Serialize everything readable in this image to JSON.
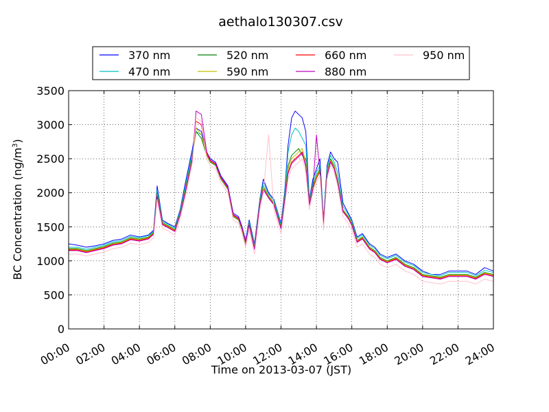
{
  "chart_data": {
    "type": "line",
    "title": "aethalo130307.csv",
    "xlabel": "Time on 2013-03-07 (JST)",
    "ylabel_main": "BC Concentration (ng/m",
    "ylabel_sup": "3",
    "ylabel_close": ")",
    "xlim": [
      0,
      24
    ],
    "ylim": [
      0,
      3500
    ],
    "grid": true,
    "legend_position": "top",
    "x_ticks": [
      0,
      2,
      4,
      6,
      8,
      10,
      12,
      14,
      16,
      18,
      20,
      22,
      24
    ],
    "x_tick_labels": [
      "00:00",
      "02:00",
      "04:00",
      "06:00",
      "08:00",
      "10:00",
      "12:00",
      "14:00",
      "16:00",
      "18:00",
      "20:00",
      "22:00",
      "24:00"
    ],
    "y_ticks": [
      0,
      500,
      1000,
      1500,
      2000,
      2500,
      3000,
      3500
    ],
    "y_tick_labels": [
      "0",
      "500",
      "1000",
      "1500",
      "2000",
      "2500",
      "3000",
      "3500"
    ],
    "x": [
      0,
      0.5,
      1,
      1.5,
      2,
      2.5,
      3,
      3.5,
      4,
      4.5,
      4.8,
      5,
      5.3,
      5.6,
      6,
      6.3,
      6.6,
      7,
      7.2,
      7.5,
      7.8,
      8,
      8.3,
      8.6,
      9,
      9.3,
      9.6,
      9.8,
      10,
      10.2,
      10.5,
      10.8,
      11,
      11.3,
      11.6,
      12,
      12.2,
      12.4,
      12.6,
      12.8,
      13,
      13.2,
      13.4,
      13.6,
      13.8,
      14,
      14.2,
      14.4,
      14.6,
      14.8,
      15,
      15.2,
      15.5,
      15.8,
      16,
      16.3,
      16.6,
      17,
      17.3,
      17.6,
      18,
      18.5,
      19,
      19.5,
      20,
      20.5,
      21,
      21.5,
      22,
      22.5,
      23,
      23.5,
      24
    ],
    "series": [
      {
        "name": "370 nm",
        "color": "#0000ff",
        "values": [
          1250,
          1230,
          1200,
          1220,
          1250,
          1300,
          1320,
          1380,
          1350,
          1380,
          1450,
          2100,
          1600,
          1550,
          1500,
          1750,
          2150,
          2650,
          2950,
          2900,
          2600,
          2500,
          2450,
          2250,
          2100,
          1700,
          1650,
          1500,
          1300,
          1600,
          1250,
          1900,
          2200,
          2000,
          1900,
          1550,
          2000,
          2700,
          3100,
          3200,
          3150,
          3100,
          2900,
          1900,
          2200,
          2350,
          2500,
          1600,
          2400,
          2600,
          2500,
          2450,
          1850,
          1700,
          1600,
          1350,
          1400,
          1250,
          1200,
          1100,
          1050,
          1100,
          1000,
          950,
          850,
          800,
          800,
          850,
          850,
          850,
          800,
          900,
          850
        ]
      },
      {
        "name": "470 nm",
        "color": "#00bfbf",
        "values": [
          1200,
          1200,
          1170,
          1200,
          1230,
          1280,
          1300,
          1360,
          1340,
          1370,
          1430,
          2050,
          1580,
          1540,
          1480,
          1730,
          2100,
          2600,
          2900,
          2850,
          2580,
          2480,
          2420,
          2230,
          2080,
          1680,
          1620,
          1480,
          1280,
          1570,
          1230,
          1880,
          2150,
          1980,
          1880,
          1530,
          1950,
          2600,
          2850,
          2950,
          2900,
          2800,
          2700,
          1880,
          2150,
          2300,
          2400,
          1580,
          2350,
          2550,
          2450,
          2300,
          1800,
          1680,
          1580,
          1330,
          1380,
          1230,
          1180,
          1080,
          1030,
          1080,
          980,
          930,
          830,
          800,
          780,
          830,
          830,
          830,
          780,
          860,
          830
        ]
      },
      {
        "name": "520 nm",
        "color": "#008000",
        "values": [
          1180,
          1180,
          1150,
          1180,
          1210,
          1260,
          1280,
          1340,
          1320,
          1350,
          1420,
          2000,
          1560,
          1520,
          1460,
          1700,
          2050,
          2550,
          2900,
          2800,
          2550,
          2450,
          2400,
          2200,
          2050,
          1650,
          1600,
          1450,
          1250,
          1550,
          1200,
          1850,
          2100,
          1950,
          1850,
          1500,
          1900,
          2400,
          2550,
          2600,
          2650,
          2550,
          2500,
          1850,
          2100,
          2250,
          2350,
          1550,
          2300,
          2500,
          2400,
          2200,
          1750,
          1650,
          1550,
          1300,
          1350,
          1200,
          1150,
          1050,
          1000,
          1050,
          950,
          900,
          800,
          780,
          760,
          800,
          800,
          800,
          760,
          830,
          800
        ]
      },
      {
        "name": "590 nm",
        "color": "#bfbf00",
        "values": [
          1170,
          1170,
          1140,
          1170,
          1200,
          1250,
          1270,
          1330,
          1310,
          1340,
          1410,
          1980,
          1550,
          1510,
          1450,
          1690,
          2030,
          2530,
          2950,
          2850,
          2560,
          2460,
          2410,
          2210,
          2060,
          1660,
          1610,
          1460,
          1260,
          1540,
          1190,
          1840,
          2080,
          1940,
          1840,
          1490,
          1880,
          2350,
          2500,
          2550,
          2600,
          2650,
          2450,
          1840,
          2080,
          2230,
          2330,
          1540,
          2280,
          2480,
          2380,
          2180,
          1740,
          1640,
          1540,
          1290,
          1340,
          1190,
          1140,
          1040,
          990,
          1040,
          940,
          890,
          790,
          770,
          750,
          790,
          790,
          790,
          750,
          820,
          790
        ]
      },
      {
        "name": "660 nm",
        "color": "#ff0000",
        "values": [
          1160,
          1160,
          1130,
          1160,
          1190,
          1240,
          1260,
          1320,
          1300,
          1330,
          1400,
          1960,
          1540,
          1500,
          1440,
          1680,
          2010,
          2510,
          3050,
          3000,
          2580,
          2470,
          2420,
          2220,
          2070,
          1670,
          1620,
          1470,
          1270,
          1530,
          1180,
          1830,
          2060,
          1930,
          1830,
          1480,
          1870,
          2300,
          2450,
          2500,
          2550,
          2600,
          2400,
          1830,
          2060,
          2210,
          2310,
          1530,
          2260,
          2460,
          2360,
          2160,
          1730,
          1630,
          1530,
          1280,
          1330,
          1180,
          1130,
          1030,
          980,
          1030,
          930,
          880,
          780,
          760,
          740,
          780,
          780,
          780,
          740,
          810,
          780
        ]
      },
      {
        "name": "880 nm",
        "color": "#bf00bf",
        "values": [
          1150,
          1150,
          1120,
          1150,
          1180,
          1230,
          1250,
          1310,
          1290,
          1320,
          1390,
          1940,
          1530,
          1490,
          1430,
          1670,
          2000,
          2500,
          3200,
          3150,
          2600,
          2480,
          2430,
          2230,
          2080,
          1680,
          1630,
          1480,
          1280,
          1520,
          1170,
          1820,
          2050,
          1920,
          1820,
          1470,
          1860,
          2280,
          2430,
          2480,
          2530,
          2580,
          2380,
          1820,
          2050,
          2850,
          2300,
          1520,
          2250,
          2450,
          2350,
          2150,
          1720,
          1620,
          1520,
          1270,
          1320,
          1170,
          1120,
          1020,
          970,
          1020,
          920,
          870,
          770,
          750,
          730,
          770,
          770,
          770,
          730,
          800,
          770
        ]
      },
      {
        "name": "950 nm",
        "color": "#ffc0cb",
        "values": [
          1100,
          1100,
          1070,
          1100,
          1130,
          1180,
          1200,
          1260,
          1240,
          1270,
          1340,
          1900,
          1480,
          1440,
          1380,
          1620,
          1950,
          2450,
          3100,
          3050,
          2500,
          2400,
          2350,
          2150,
          2000,
          1600,
          1550,
          1400,
          1200,
          1450,
          1100,
          1750,
          2000,
          2850,
          1750,
          1400,
          1800,
          2200,
          2350,
          2400,
          2450,
          2500,
          2300,
          1750,
          2000,
          2150,
          2250,
          1450,
          2200,
          2400,
          2300,
          2100,
          1650,
          1550,
          1450,
          1200,
          1250,
          1100,
          1050,
          950,
          900,
          950,
          850,
          800,
          700,
          680,
          660,
          700,
          700,
          700,
          660,
          730,
          700
        ]
      }
    ]
  }
}
